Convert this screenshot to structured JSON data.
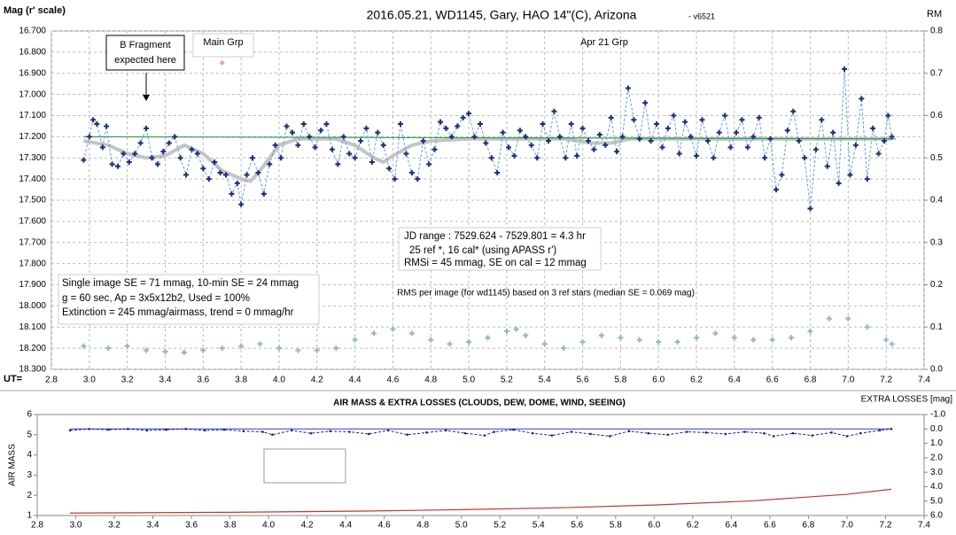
{
  "chart_data": [
    {
      "type": "scatter",
      "title": "2016.05.21,  WD1145, Gary, HAO 14\"(C), Arizona",
      "subtitle": "- v6521",
      "ylabel": "Mag (r' scale)",
      "y2label": "RM",
      "xlabel": "UT=",
      "annotations": [
        "B Fragment",
        "expected here",
        "Main Grp",
        "Apr 21 Grp",
        "JD range : 7529.624 - 7529.801 = 4.3 hr",
        "25 ref *, 16 cal* (using APASS r')",
        "RMSi = 45 mmag, SE on cal = 12 mmag",
        "Single image SE = 71 mmag, 10-min SE = 24 mmag",
        "g = 60 sec, Ap = 3x5x12b2, Used = 100%",
        "Extinction = 245 mmag/airmass, trend = 0 mmag/hr",
        "RMS per image (for wd1145) based on 3 ref stars (median SE = 0.069 mag)"
      ],
      "grid": true,
      "xlim": [
        2.8,
        7.4
      ],
      "xticks": [
        2.8,
        {
          "value": 3,
          "label": "3.0"
        },
        3.2,
        3.4,
        3.6,
        3.8,
        {
          "value": 4,
          "label": "4.0"
        },
        4.2,
        4.4,
        4.6,
        4.8,
        {
          "value": 5,
          "label": "5.0"
        },
        5.2,
        5.4,
        5.6,
        5.8,
        {
          "value": 6,
          "label": "6.0"
        },
        6.2,
        6.4,
        6.6,
        6.8,
        {
          "value": 7,
          "label": "7.0"
        },
        7.2,
        7.4
      ],
      "ylim": [
        18.3,
        16.7
      ],
      "yticks": [
        {
          "value": 16.7,
          "label": "16.700"
        },
        {
          "value": 16.8,
          "label": "16.800"
        },
        {
          "value": 16.9,
          "label": "16.900"
        },
        {
          "value": 17.0,
          "label": "17.000"
        },
        {
          "value": 17.1,
          "label": "17.100"
        },
        {
          "value": 17.2,
          "label": "17.200"
        },
        {
          "value": 17.3,
          "label": "17.300"
        },
        {
          "value": 17.4,
          "label": "17.400"
        },
        {
          "value": 17.5,
          "label": "17.500"
        },
        {
          "value": 17.6,
          "label": "17.600"
        },
        {
          "value": 17.7,
          "label": "17.700"
        },
        {
          "value": 17.8,
          "label": "17.800"
        },
        {
          "value": 17.9,
          "label": "17.900"
        },
        {
          "value": 18.0,
          "label": "18.000"
        },
        {
          "value": 18.1,
          "label": "18.100"
        },
        {
          "value": 18.2,
          "label": "18.200"
        },
        {
          "value": 18.3,
          "label": "18.300"
        }
      ],
      "y2lim": [
        0,
        0.8
      ],
      "y2ticks": [
        {
          "value": 0,
          "label": "0.0"
        },
        0.1,
        0.2,
        0.3,
        0.4,
        0.5,
        0.6,
        0.7,
        0.8
      ],
      "series": [
        {
          "color": "#c4c4c4",
          "line": "solid",
          "width": 4,
          "marker": null,
          "x": [
            2.97,
            3.1,
            3.2,
            3.3,
            3.4,
            3.5,
            3.6,
            3.7,
            3.8,
            3.85,
            3.9,
            4.0,
            4.1,
            4.3,
            4.4,
            4.5,
            4.55,
            4.6,
            4.7,
            4.8,
            5.0,
            5.5,
            5.65,
            5.75,
            5.85,
            7.23
          ],
          "values": [
            17.22,
            17.24,
            17.28,
            17.3,
            17.29,
            17.24,
            17.28,
            17.36,
            17.4,
            17.41,
            17.36,
            17.24,
            17.21,
            17.21,
            17.24,
            17.3,
            17.32,
            17.29,
            17.24,
            17.22,
            17.21,
            17.21,
            17.23,
            17.23,
            17.21,
            17.21
          ]
        },
        {
          "color": "#2e9e4f",
          "line": "solid",
          "width": 1.2,
          "marker": null,
          "x": [
            2.97,
            7.25
          ],
          "values": [
            17.2,
            17.21
          ]
        },
        {
          "color": "#1a2f7a",
          "linecolor": "#6a9fd4",
          "line": "dashed",
          "width": 1,
          "marker": "plus",
          "x": [
            2.97,
            3.0,
            3.02,
            3.04,
            3.07,
            3.09,
            3.12,
            3.15,
            3.18,
            3.21,
            3.24,
            3.27,
            3.3,
            3.33,
            3.36,
            3.39,
            3.42,
            3.45,
            3.48,
            3.51,
            3.54,
            3.57,
            3.6,
            3.63,
            3.66,
            3.69,
            3.72,
            3.75,
            3.78,
            3.8,
            3.83,
            3.86,
            3.89,
            3.92,
            3.95,
            3.98,
            4.01,
            4.04,
            4.07,
            4.1,
            4.13,
            4.16,
            4.19,
            4.22,
            4.25,
            4.28,
            4.31,
            4.34,
            4.37,
            4.4,
            4.43,
            4.46,
            4.49,
            4.52,
            4.55,
            4.58,
            4.61,
            4.64,
            4.67,
            4.7,
            4.73,
            4.76,
            4.79,
            4.82,
            4.85,
            4.88,
            4.91,
            4.94,
            4.97,
            5.0,
            5.03,
            5.06,
            5.09,
            5.12,
            5.15,
            5.18,
            5.21,
            5.24,
            5.27,
            5.3,
            5.33,
            5.36,
            5.39,
            5.42,
            5.45,
            5.48,
            5.51,
            5.54,
            5.57,
            5.6,
            5.63,
            5.66,
            5.69,
            5.72,
            5.75,
            5.78,
            5.81,
            5.84,
            5.87,
            5.9,
            5.93,
            5.96,
            5.99,
            6.02,
            6.05,
            6.08,
            6.11,
            6.14,
            6.17,
            6.2,
            6.23,
            6.26,
            6.29,
            6.32,
            6.35,
            6.38,
            6.41,
            6.44,
            6.47,
            6.5,
            6.53,
            6.56,
            6.59,
            6.62,
            6.65,
            6.68,
            6.71,
            6.74,
            6.77,
            6.8,
            6.83,
            6.86,
            6.89,
            6.92,
            6.95,
            6.98,
            7.01,
            7.04,
            7.07,
            7.1,
            7.13,
            7.16,
            7.19,
            7.21,
            7.23
          ],
          "values": [
            17.31,
            17.2,
            17.12,
            17.14,
            17.25,
            17.15,
            17.33,
            17.34,
            17.28,
            17.32,
            17.28,
            17.23,
            17.16,
            17.3,
            17.33,
            17.27,
            17.23,
            17.2,
            17.3,
            17.38,
            17.26,
            17.28,
            17.35,
            17.4,
            17.32,
            17.37,
            17.38,
            17.47,
            17.42,
            17.52,
            17.38,
            17.3,
            17.37,
            17.47,
            17.33,
            17.24,
            17.3,
            17.15,
            17.18,
            17.24,
            17.14,
            17.2,
            17.25,
            17.17,
            17.14,
            17.26,
            17.33,
            17.2,
            17.28,
            17.3,
            17.22,
            17.16,
            17.32,
            17.18,
            17.24,
            17.35,
            17.4,
            17.14,
            17.28,
            17.37,
            17.4,
            17.22,
            17.33,
            17.26,
            17.13,
            17.16,
            17.2,
            17.15,
            17.11,
            17.09,
            17.2,
            17.14,
            17.23,
            17.3,
            17.37,
            17.18,
            17.25,
            17.29,
            17.17,
            17.2,
            17.24,
            17.3,
            17.14,
            17.22,
            17.08,
            17.2,
            17.3,
            17.14,
            17.29,
            17.16,
            17.22,
            17.26,
            17.19,
            17.24,
            17.11,
            17.27,
            17.2,
            16.97,
            17.12,
            17.21,
            17.04,
            17.22,
            17.14,
            17.25,
            17.16,
            17.1,
            17.28,
            17.13,
            17.2,
            17.29,
            17.12,
            17.22,
            17.3,
            17.18,
            17.1,
            17.25,
            17.18,
            17.12,
            17.25,
            17.2,
            17.11,
            17.3,
            17.21,
            17.45,
            17.38,
            17.17,
            17.08,
            17.22,
            17.3,
            17.54,
            17.26,
            17.12,
            17.34,
            17.18,
            17.42,
            16.88,
            17.38,
            17.24,
            17.02,
            17.4,
            17.16,
            17.28,
            17.22,
            17.1,
            17.2
          ]
        },
        {
          "color": "#f4a582",
          "line": null,
          "marker": "diamond",
          "x": [
            3.7
          ],
          "values": [
            16.85
          ]
        },
        {
          "color": "#8fb8c8",
          "line": null,
          "marker": "plus",
          "axis": "y2",
          "x": [
            2.97,
            3.1,
            3.2,
            3.3,
            3.4,
            3.5,
            3.6,
            3.7,
            3.8,
            3.9,
            4.0,
            4.1,
            4.2,
            4.3,
            4.4,
            4.5,
            4.6,
            4.7,
            4.8,
            4.9,
            5.0,
            5.1,
            5.2,
            5.25,
            5.3,
            5.4,
            5.5,
            5.6,
            5.7,
            5.8,
            5.9,
            6.0,
            6.1,
            6.2,
            6.3,
            6.4,
            6.5,
            6.6,
            6.7,
            6.8,
            6.9,
            7.0,
            7.1,
            7.2,
            7.23
          ],
          "values": [
            0.055,
            0.05,
            0.055,
            0.045,
            0.042,
            0.04,
            0.045,
            0.05,
            0.055,
            0.06,
            0.05,
            0.045,
            0.045,
            0.05,
            0.07,
            0.085,
            0.095,
            0.085,
            0.07,
            0.06,
            0.065,
            0.075,
            0.09,
            0.095,
            0.08,
            0.06,
            0.05,
            0.065,
            0.08,
            0.075,
            0.07,
            0.065,
            0.065,
            0.075,
            0.085,
            0.075,
            0.07,
            0.07,
            0.075,
            0.09,
            0.12,
            0.12,
            0.1,
            0.07,
            0.06
          ]
        }
      ]
    },
    {
      "type": "line",
      "title": "AIR MASS & EXTRA LOSSES (CLOUDS, DEW, DOME, WIND, SEEING)",
      "ylabel": "AIR MASS",
      "y2label": "EXTRA LOSSES [mag]",
      "grid": false,
      "xlim": [
        2.8,
        7.4
      ],
      "xticks": [
        2.8,
        {
          "value": 3,
          "label": "3.0"
        },
        3.2,
        3.4,
        3.6,
        3.8,
        {
          "value": 4,
          "label": "4.0"
        },
        4.2,
        4.4,
        4.6,
        4.8,
        {
          "value": 5,
          "label": "5.0"
        },
        5.2,
        5.4,
        5.6,
        5.8,
        {
          "value": 6,
          "label": "6.0"
        },
        6.2,
        6.4,
        6.6,
        6.8,
        {
          "value": 7,
          "label": "7.0"
        },
        7.2,
        7.4
      ],
      "ylim": [
        1,
        6
      ],
      "yticks": [
        1,
        2,
        3,
        4,
        5,
        6
      ],
      "y2lim": [
        6,
        -1
      ],
      "y2ticks": [
        {
          "value": -1,
          "label": "-1.0"
        },
        {
          "value": 0,
          "label": "0.0"
        },
        {
          "value": 1,
          "label": "1.0"
        },
        {
          "value": 2,
          "label": "2.0"
        },
        {
          "value": 3,
          "label": "3.0"
        },
        {
          "value": 4,
          "label": "4.0"
        },
        {
          "value": 5,
          "label": "5.0"
        },
        {
          "value": 6,
          "label": "6.0"
        }
      ],
      "series": [
        {
          "name": "AIR MASS",
          "color": "#c0392b",
          "line": "solid",
          "width": 1.2,
          "marker": null,
          "x": [
            2.97,
            3.8,
            4.5,
            5.0,
            5.5,
            6.0,
            6.5,
            7.0,
            7.23
          ],
          "values": [
            1.12,
            1.16,
            1.22,
            1.29,
            1.38,
            1.52,
            1.72,
            2.05,
            2.3
          ]
        },
        {
          "color": "#2a3fbf",
          "line": "solid",
          "width": 1,
          "marker": null,
          "axis": "y2",
          "x": [
            2.97,
            7.23
          ],
          "values": [
            0,
            0
          ]
        },
        {
          "name": "Extra Losses",
          "color": "#1a237e",
          "line": "dashed",
          "width": 1,
          "marker": "dot",
          "axis": "y2",
          "x": [
            2.97,
            3.07,
            3.17,
            3.27,
            3.37,
            3.47,
            3.57,
            3.67,
            3.77,
            3.87,
            3.97,
            4.02,
            4.12,
            4.22,
            4.32,
            4.42,
            4.52,
            4.62,
            4.72,
            4.82,
            4.92,
            5.02,
            5.12,
            5.17,
            5.27,
            5.37,
            5.47,
            5.57,
            5.67,
            5.77,
            5.87,
            5.97,
            6.07,
            6.17,
            6.27,
            6.37,
            6.47,
            6.57,
            6.62,
            6.72,
            6.82,
            6.92,
            7.0,
            7.07,
            7.17,
            7.23
          ],
          "values": [
            0.1,
            0.0,
            0.05,
            0.0,
            0.1,
            0.05,
            0.0,
            0.1,
            0.05,
            0.15,
            0.2,
            0.4,
            0.1,
            0.3,
            0.15,
            0.2,
            0.35,
            0.1,
            0.4,
            0.25,
            0.1,
            0.3,
            0.45,
            0.2,
            0.05,
            0.3,
            0.45,
            0.2,
            0.35,
            0.5,
            0.15,
            0.3,
            0.4,
            0.2,
            0.25,
            0.35,
            0.2,
            0.3,
            0.5,
            0.3,
            0.45,
            0.25,
            0.5,
            0.3,
            0.1,
            0.0
          ]
        }
      ]
    }
  ]
}
